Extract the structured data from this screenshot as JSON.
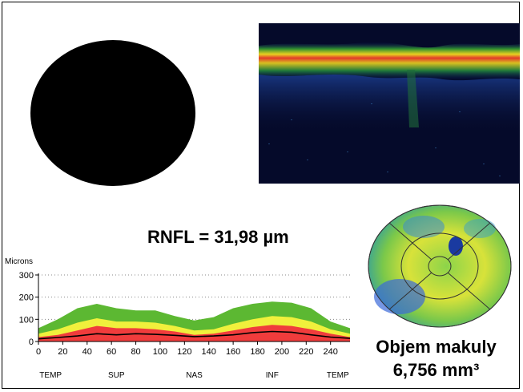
{
  "rnfl_text": "RNFL = 31,98 µm",
  "macula": {
    "line1": "Objem makuly",
    "line2": "6,756 mm³"
  },
  "colors": {
    "normal_band": "#5cb832",
    "borderline_band": "#f0f03c",
    "abnormal_band": "#f03c3c",
    "measured_line": "#000000",
    "fundus": "#000000",
    "oct_background": "#050a2a"
  },
  "chart_data": {
    "type": "area",
    "ylabel": "Microns",
    "ylim": [
      0,
      300
    ],
    "xlim": [
      0,
      256
    ],
    "yticks": [
      0,
      100,
      200,
      300
    ],
    "xticks": [
      0,
      20,
      40,
      60,
      80,
      100,
      120,
      140,
      160,
      180,
      200,
      220,
      240
    ],
    "region_labels": [
      {
        "label": "TEMP",
        "x": 10
      },
      {
        "label": "SUP",
        "x": 64
      },
      {
        "label": "NAS",
        "x": 128
      },
      {
        "label": "INF",
        "x": 192
      },
      {
        "label": "TEMP",
        "x": 246
      }
    ],
    "grid": "dotted horizontal",
    "x": [
      0,
      16,
      32,
      48,
      64,
      80,
      96,
      112,
      128,
      144,
      160,
      176,
      192,
      208,
      224,
      240,
      256
    ],
    "series": [
      {
        "values": [
          60,
          100,
          150,
          170,
          150,
          140,
          140,
          115,
          95,
          110,
          150,
          170,
          180,
          175,
          150,
          90,
          60
        ]
      },
      {
        "values": [
          35,
          55,
          85,
          105,
          90,
          90,
          85,
          70,
          50,
          55,
          80,
          100,
          115,
          110,
          90,
          55,
          35
        ]
      },
      {
        "values": [
          20,
          30,
          50,
          70,
          60,
          60,
          55,
          45,
          30,
          35,
          50,
          65,
          75,
          70,
          55,
          35,
          20
        ]
      },
      {
        "values": [
          12,
          18,
          25,
          35,
          30,
          35,
          32,
          28,
          22,
          25,
          30,
          40,
          45,
          42,
          30,
          20,
          14
        ]
      }
    ]
  }
}
